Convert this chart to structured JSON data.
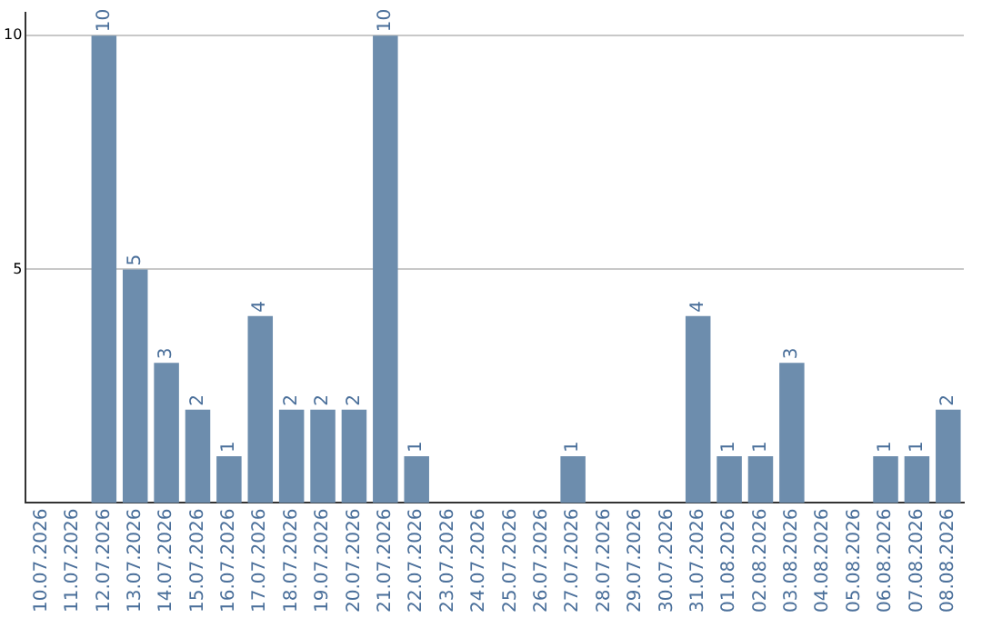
{
  "chart_data": {
    "type": "bar",
    "categories": [
      "10.07.2026",
      "11.07.2026",
      "12.07.2026",
      "13.07.2026",
      "14.07.2026",
      "15.07.2026",
      "16.07.2026",
      "17.07.2026",
      "18.07.2026",
      "19.07.2026",
      "20.07.2026",
      "21.07.2026",
      "22.07.2026",
      "23.07.2026",
      "24.07.2026",
      "25.07.2026",
      "26.07.2026",
      "27.07.2026",
      "28.07.2026",
      "29.07.2026",
      "30.07.2026",
      "31.07.2026",
      "01.08.2026",
      "02.08.2026",
      "03.08.2026",
      "04.08.2026",
      "05.08.2026",
      "06.08.2026",
      "07.08.2026",
      "08.08.2026"
    ],
    "values": [
      0,
      0,
      10,
      5,
      3,
      2,
      1,
      4,
      2,
      2,
      2,
      10,
      1,
      0,
      0,
      0,
      0,
      1,
      0,
      0,
      0,
      4,
      1,
      1,
      3,
      0,
      0,
      1,
      1,
      2
    ],
    "value_labels": [
      null,
      null,
      "10",
      "5",
      "3",
      "2",
      "1",
      "4",
      "2",
      "2",
      "2",
      "10",
      "1",
      null,
      null,
      null,
      null,
      "1",
      null,
      null,
      null,
      "4",
      "1",
      "1",
      "3",
      null,
      null,
      "1",
      "1",
      "2"
    ],
    "color": "#6d8dad",
    "ylim": [
      0,
      10.5
    ],
    "yticks": [
      5,
      10
    ],
    "grid": "y"
  }
}
